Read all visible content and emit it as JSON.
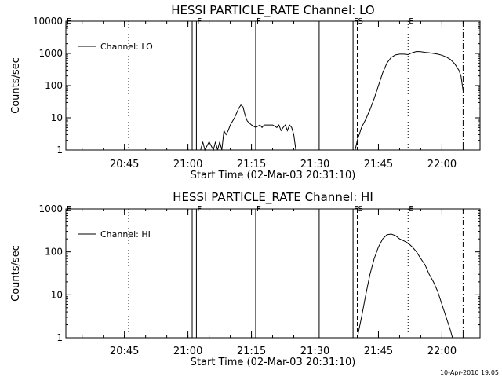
{
  "footer": {
    "timestamp": "10-Apr-2010 19:05"
  },
  "colors": {
    "foreground": "#000000",
    "background": "#ffffff"
  },
  "chart_data": [
    {
      "type": "line",
      "title": "HESSI PARTICLE_RATE Channel: LO",
      "xlabel": "Start Time (02-Mar-03 20:31:10)",
      "ylabel": "Counts/sec",
      "y_scale": "log",
      "ylim": [
        1,
        10000
      ],
      "y_ticks": [
        1,
        10,
        100,
        1000,
        10000
      ],
      "y_tick_labels": [
        "1",
        "10",
        "100",
        "1000",
        "10000"
      ],
      "xlim": [
        "20:31:10",
        "22:09:00"
      ],
      "x_ticks": [
        "20:45",
        "21:00",
        "21:15",
        "21:30",
        "21:45",
        "22:00"
      ],
      "grid": false,
      "legend": {
        "position": "top-left",
        "entries": [
          "Channel: LO"
        ]
      },
      "series": [
        {
          "name": "Channel: LO",
          "segments": [
            [
              [
                "21:03",
                1
              ],
              [
                "21:03:30",
                1.8
              ],
              [
                "21:04",
                1
              ],
              [
                "21:05",
                1.8
              ],
              [
                "21:06",
                1
              ],
              [
                "21:06:30",
                1.8
              ],
              [
                "21:07",
                1
              ],
              [
                "21:07:30",
                1.8
              ],
              [
                "21:08",
                1
              ]
            ],
            [
              [
                "21:08",
                1
              ],
              [
                "21:08:30",
                4
              ],
              [
                "21:09",
                3
              ],
              [
                "21:09:30",
                4
              ],
              [
                "21:10",
                6
              ],
              [
                "21:11",
                10
              ],
              [
                "21:12",
                20
              ],
              [
                "21:12:30",
                25
              ],
              [
                "21:13",
                22
              ],
              [
                "21:13:30",
                12
              ],
              [
                "21:14",
                8
              ],
              [
                "21:15",
                6
              ],
              [
                "21:16",
                5
              ],
              [
                "21:17",
                6
              ],
              [
                "21:17:30",
                5
              ],
              [
                "21:18",
                6
              ],
              [
                "21:19",
                6
              ],
              [
                "21:20",
                6
              ],
              [
                "21:21",
                5
              ],
              [
                "21:21:30",
                6
              ],
              [
                "21:22",
                4
              ],
              [
                "21:22:30",
                5
              ],
              [
                "21:23",
                6
              ],
              [
                "21:23:30",
                4
              ],
              [
                "21:24",
                6
              ],
              [
                "21:24:30",
                5
              ],
              [
                "21:25",
                3
              ],
              [
                "21:25:30",
                1
              ]
            ],
            [
              [
                "21:39:30",
                1
              ],
              [
                "21:40",
                2
              ],
              [
                "21:41",
                5
              ],
              [
                "21:42",
                9
              ],
              [
                "21:43",
                18
              ],
              [
                "21:44",
                40
              ],
              [
                "21:45",
                100
              ],
              [
                "21:46",
                250
              ],
              [
                "21:47",
                500
              ],
              [
                "21:48",
                750
              ],
              [
                "21:49",
                900
              ],
              [
                "21:50",
                950
              ],
              [
                "21:51",
                950
              ],
              [
                "21:52",
                920
              ],
              [
                "21:53",
                1050
              ],
              [
                "21:54",
                1150
              ],
              [
                "21:55",
                1130
              ],
              [
                "21:56",
                1080
              ],
              [
                "21:57",
                1050
              ],
              [
                "21:58",
                1000
              ],
              [
                "21:59",
                950
              ],
              [
                "22:00",
                880
              ],
              [
                "22:01",
                780
              ],
              [
                "22:02",
                650
              ],
              [
                "22:03",
                480
              ],
              [
                "22:04",
                300
              ],
              [
                "22:04:30",
                200
              ],
              [
                "22:05",
                70
              ]
            ]
          ]
        }
      ],
      "markers": [
        {
          "label": "E",
          "time": "20:31:10",
          "style": "none"
        },
        {
          "label": "",
          "time": "20:46",
          "style": "dotted"
        },
        {
          "label": "",
          "time": "21:01",
          "style": "solid"
        },
        {
          "label": "F",
          "time": "21:02",
          "style": "solid"
        },
        {
          "label": "F",
          "time": "21:16",
          "style": "solid"
        },
        {
          "label": "",
          "time": "21:31",
          "style": "solid"
        },
        {
          "label": "F",
          "time": "21:39",
          "style": "solid"
        },
        {
          "label": "S",
          "time": "21:40",
          "style": "dashed"
        },
        {
          "label": "E",
          "time": "21:52",
          "style": "dotted"
        },
        {
          "label": "",
          "time": "22:05",
          "style": "dash-dot"
        }
      ]
    },
    {
      "type": "line",
      "title": "HESSI PARTICLE_RATE Channel: HI",
      "xlabel": "Start Time (02-Mar-03 20:31:10)",
      "ylabel": "Counts/sec",
      "y_scale": "log",
      "ylim": [
        1,
        1000
      ],
      "y_ticks": [
        1,
        10,
        100,
        1000
      ],
      "y_tick_labels": [
        "1",
        "10",
        "100",
        "1000"
      ],
      "xlim": [
        "20:31:10",
        "22:09:00"
      ],
      "x_ticks": [
        "20:45",
        "21:00",
        "21:15",
        "21:30",
        "21:45",
        "22:00"
      ],
      "grid": false,
      "legend": {
        "position": "top-left",
        "entries": [
          "Channel: HI"
        ]
      },
      "series": [
        {
          "name": "Channel: HI",
          "segments": [
            [
              [
                "21:40",
                1
              ],
              [
                "21:41",
                3
              ],
              [
                "21:42",
                10
              ],
              [
                "21:43",
                30
              ],
              [
                "21:44",
                70
              ],
              [
                "21:45",
                130
              ],
              [
                "21:46",
                200
              ],
              [
                "21:47",
                250
              ],
              [
                "21:48",
                260
              ],
              [
                "21:49",
                240
              ],
              [
                "21:50",
                200
              ],
              [
                "21:51",
                180
              ],
              [
                "21:52",
                160
              ],
              [
                "21:53",
                130
              ],
              [
                "21:54",
                100
              ],
              [
                "21:55",
                70
              ],
              [
                "21:56",
                50
              ],
              [
                "21:57",
                30
              ],
              [
                "21:58",
                20
              ],
              [
                "21:59",
                12
              ],
              [
                "22:00",
                6
              ],
              [
                "22:01",
                3
              ],
              [
                "22:02",
                1.5
              ],
              [
                "22:02:30",
                1
              ]
            ]
          ]
        }
      ],
      "markers": [
        {
          "label": "E",
          "time": "20:31:10",
          "style": "none"
        },
        {
          "label": "",
          "time": "20:46",
          "style": "dotted"
        },
        {
          "label": "",
          "time": "21:01",
          "style": "solid"
        },
        {
          "label": "F",
          "time": "21:02",
          "style": "solid"
        },
        {
          "label": "F",
          "time": "21:16",
          "style": "solid"
        },
        {
          "label": "",
          "time": "21:31",
          "style": "solid"
        },
        {
          "label": "F",
          "time": "21:39",
          "style": "solid"
        },
        {
          "label": "S",
          "time": "21:40",
          "style": "dashed"
        },
        {
          "label": "E",
          "time": "21:52",
          "style": "dotted"
        },
        {
          "label": "",
          "time": "22:05",
          "style": "dash-dot"
        }
      ]
    }
  ]
}
